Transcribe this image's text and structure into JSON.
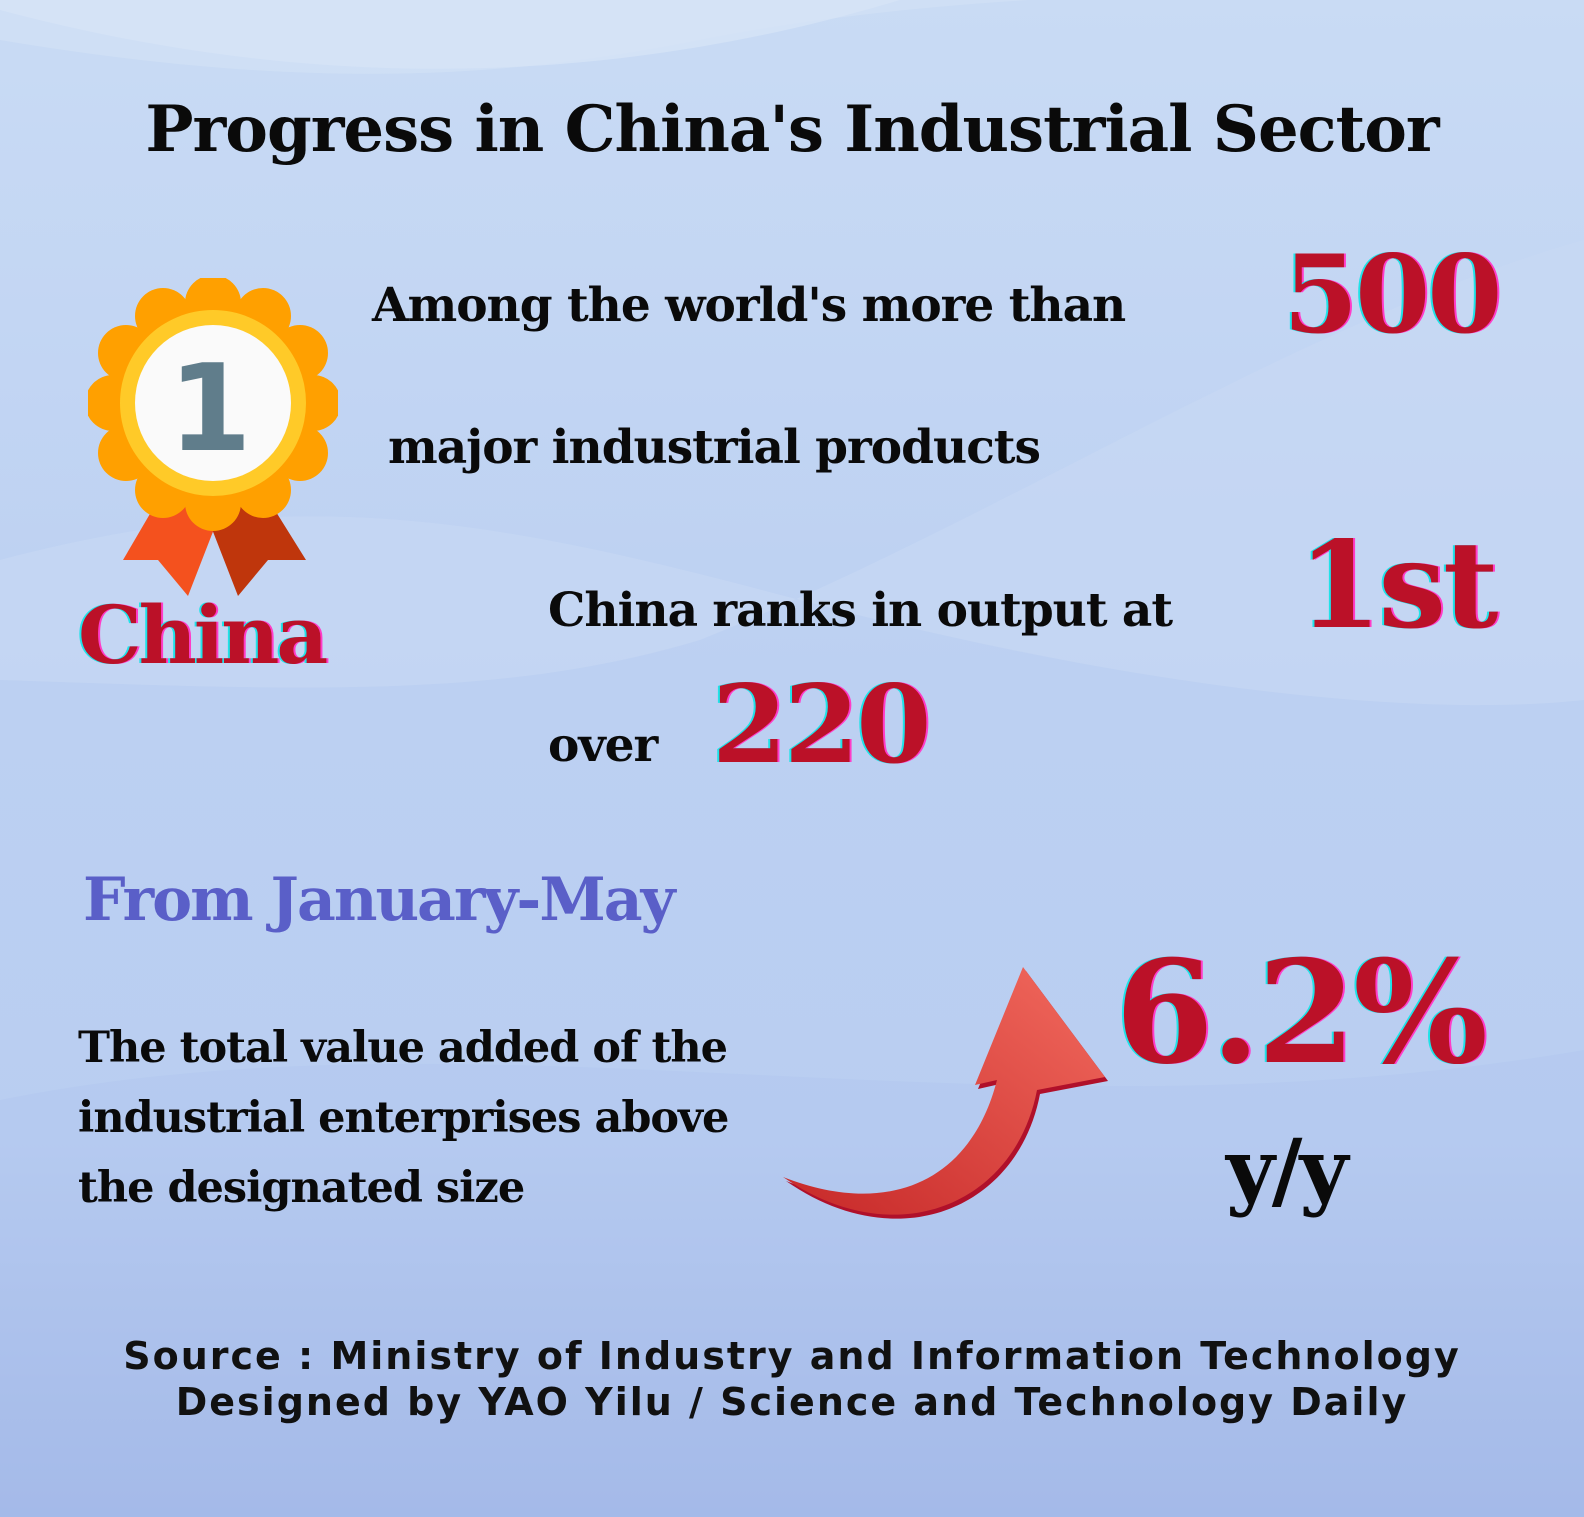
{
  "title": "Progress in China's Industrial Sector",
  "ranking": {
    "medal_number": "1",
    "country": "China",
    "line1": "Among the world's more than",
    "products_count": "500",
    "line2": "major industrial products",
    "line3": "China ranks in output at",
    "rank": "1st",
    "line4": "over",
    "ranked_count": "220"
  },
  "growth": {
    "period": "From January-May",
    "description": [
      "The total value added of the",
      "industrial enterprises above",
      "the designated size"
    ],
    "value": "6.2%",
    "unit": "y/y",
    "icon": "up-arrow-icon"
  },
  "credits": {
    "source": "Source : Ministry of Industry and Information Technology",
    "designer": "Designed by YAO Yilu / Science and Technology Daily"
  },
  "colors": {
    "highlight_red": "#bb1128",
    "period_purple": "#5a5fc8",
    "medal_orange": "#ffa000",
    "medal_ring": "#ffca28"
  }
}
